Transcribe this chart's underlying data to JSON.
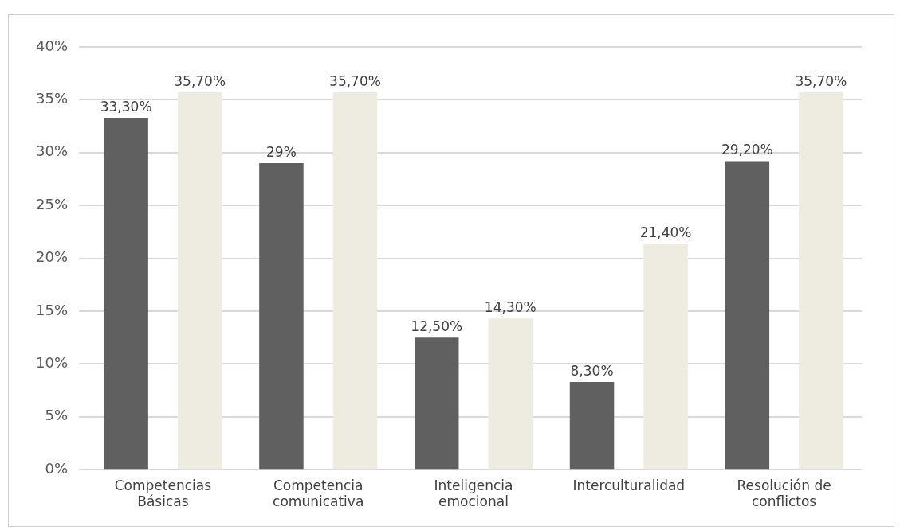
{
  "chart_data": {
    "type": "bar",
    "categories": [
      "Competencias Básicas",
      "Competencia comunicativa",
      "Inteligencia emocional",
      "Interculturalidad",
      "Resolución de conflictos"
    ],
    "series": [
      {
        "color": "#606060",
        "values": [
          33.3,
          29,
          12.5,
          8.3,
          29.2
        ],
        "value_labels": [
          "33,30%",
          "29%",
          "12,50%",
          "8,30%",
          "29,20%"
        ]
      },
      {
        "color": "#eeebe0",
        "values": [
          35.7,
          35.7,
          14.3,
          21.4,
          35.7
        ],
        "value_labels": [
          "35,70%",
          "35,70%",
          "14,30%",
          "21,40%",
          "35,70%"
        ]
      }
    ],
    "ylim": [
      0,
      40
    ],
    "yticks": [
      {
        "value": 0,
        "label": "0%"
      },
      {
        "value": 5,
        "label": "5%"
      },
      {
        "value": 10,
        "label": "10%"
      },
      {
        "value": 15,
        "label": "15%"
      },
      {
        "value": 20,
        "label": "20%"
      },
      {
        "value": 25,
        "label": "25%"
      },
      {
        "value": 30,
        "label": "30%"
      },
      {
        "value": 35,
        "label": "35%"
      },
      {
        "value": 40,
        "label": "40%"
      }
    ],
    "grid": "y",
    "legend": false
  }
}
